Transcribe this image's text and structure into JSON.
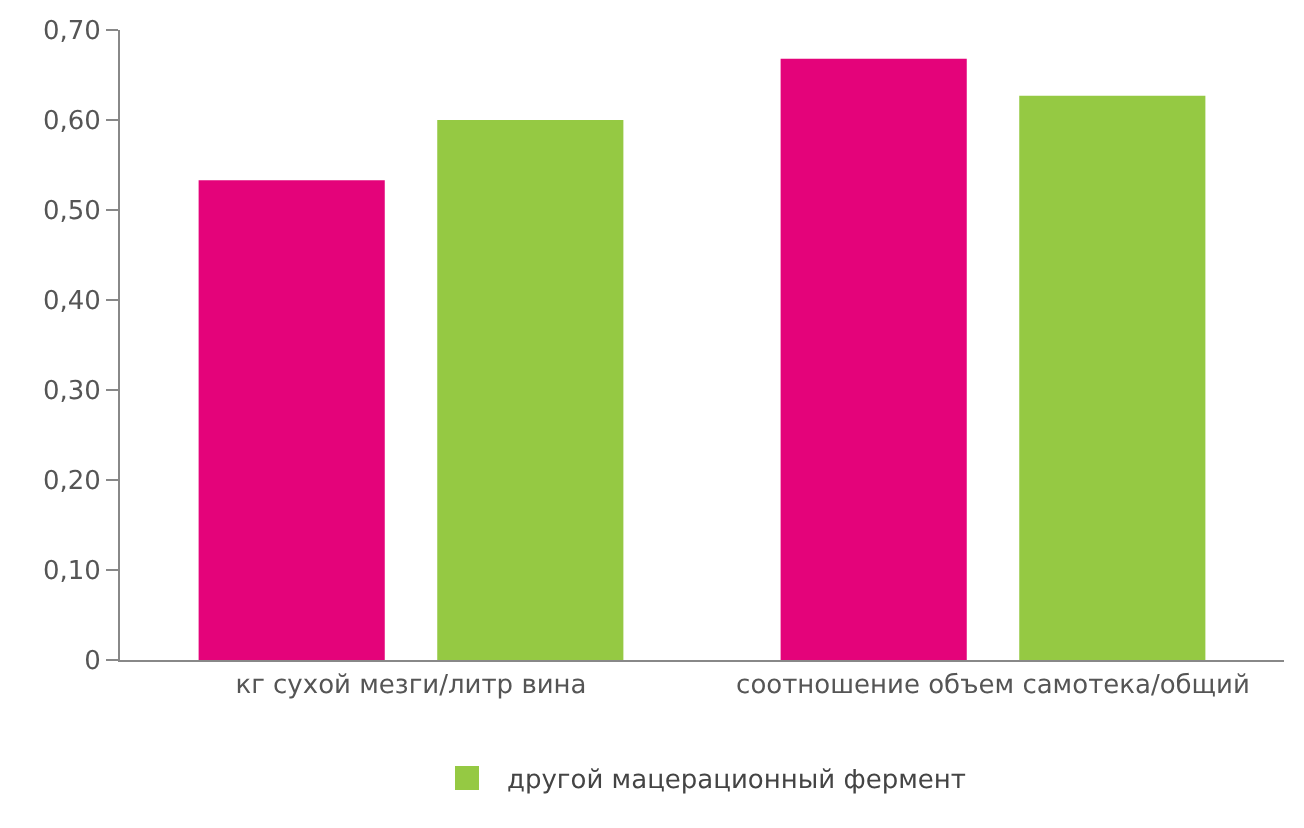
{
  "chart_data": {
    "type": "bar",
    "categories": [
      "кг сухой мезги/литр вина",
      "соотношение объем самотека/общий"
    ],
    "series": [
      {
        "color": "#e4037a",
        "values": [
          0.533,
          0.668
        ]
      },
      {
        "name": "другой мацерационный фермент",
        "color": "#95c943",
        "values": [
          0.6,
          0.627
        ]
      }
    ],
    "ylim": [
      0,
      0.7
    ],
    "yticks": [
      {
        "value": 0,
        "label": "0"
      },
      {
        "value": 0.1,
        "label": "0,10"
      },
      {
        "value": 0.2,
        "label": "0,20"
      },
      {
        "value": 0.3,
        "label": "0,30"
      },
      {
        "value": 0.4,
        "label": "0,40"
      },
      {
        "value": 0.5,
        "label": "0,50"
      },
      {
        "value": 0.6,
        "label": "0,60"
      },
      {
        "value": 0.7,
        "label": "0,70"
      }
    ],
    "legend": "bottom"
  }
}
